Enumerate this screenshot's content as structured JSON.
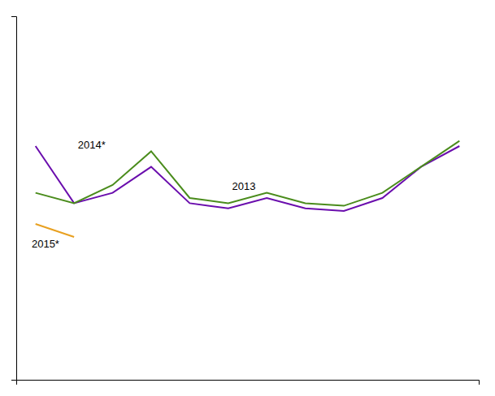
{
  "chart_data": {
    "type": "line",
    "x": [
      1,
      2,
      3,
      4,
      5,
      6,
      7,
      8,
      9,
      10,
      11,
      12
    ],
    "xlim": [
      0.5,
      12.5
    ],
    "ylim": [
      0,
      140
    ],
    "xticks": [],
    "yticks": [],
    "tick_labels": false,
    "series": [
      {
        "color": "#6a0dad",
        "values": [
          90,
          68,
          72,
          82,
          68,
          66,
          70,
          66,
          65,
          70,
          82,
          90
        ]
      },
      {
        "color": "#4a8c1c",
        "values": [
          72,
          68,
          75,
          88,
          70,
          68,
          72,
          68,
          67,
          72,
          82,
          92
        ]
      },
      {
        "color": "#e8a020",
        "values": [
          60,
          55,
          null,
          null,
          null,
          null,
          null,
          null,
          null,
          null,
          null,
          null
        ]
      }
    ],
    "annotations": [
      {
        "text": "2014*",
        "x": 2.1,
        "y": 89
      },
      {
        "text": "2013",
        "x": 6.1,
        "y": 73
      },
      {
        "text": "2015*",
        "x": 0.9,
        "y": 51
      }
    ]
  }
}
